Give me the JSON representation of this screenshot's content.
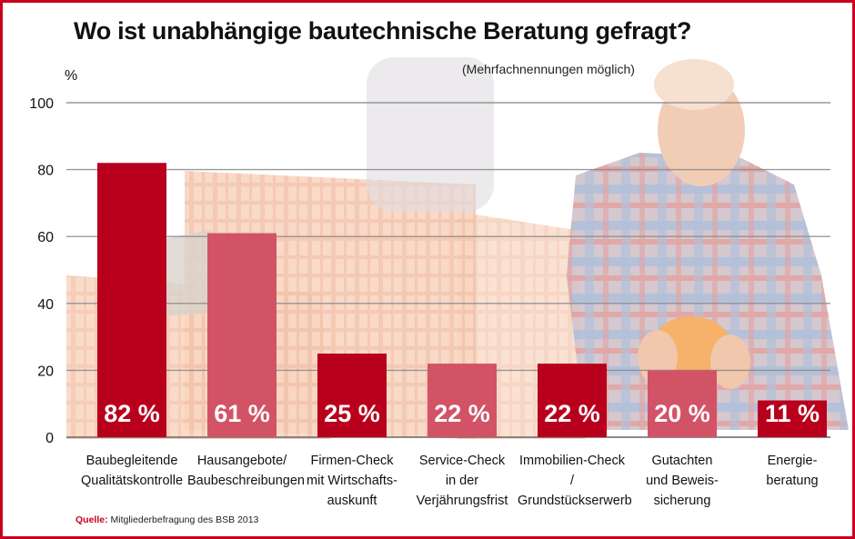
{
  "title": "Wo ist unabhängige bautechnische Beratung gefragt?",
  "subtitle": "(Mehrfachnennungen möglich)",
  "unit": "%",
  "source": {
    "label": "Quelle:",
    "text": "Mitgliederbefragung des BSB 2013"
  },
  "colors": {
    "dark": "#b8001c",
    "light": "#d25366",
    "frame": "#c8001e",
    "grid": "#888888"
  },
  "chart_data": {
    "type": "bar",
    "title": "Wo ist unabhängige bautechnische Beratung gefragt?",
    "ylabel": "%",
    "ylim": [
      0,
      100
    ],
    "yticks": [
      0,
      20,
      40,
      60,
      80,
      100
    ],
    "grid": true,
    "categories": [
      [
        "Baubegleitende",
        "Qualitätskontrolle"
      ],
      [
        "Hausangebote/",
        "Baubeschreibungen"
      ],
      [
        "Firmen-Check",
        "mit Wirtschafts-",
        "auskunft"
      ],
      [
        "Service-Check",
        "in der",
        "Verjährungsfrist"
      ],
      [
        "Immobilien-Check /",
        "Grundstückserwerb"
      ],
      [
        "Gutachten",
        "und Beweis-",
        "sicherung"
      ],
      [
        "Energie-",
        "beratung"
      ]
    ],
    "values": [
      82,
      61,
      25,
      22,
      22,
      20,
      11
    ],
    "value_labels": [
      "82 %",
      "61 %",
      "25 %",
      "22 %",
      "22 %",
      "20 %",
      "11 %"
    ],
    "bar_colors": [
      "#b8001c",
      "#d25366",
      "#b8001c",
      "#d25366",
      "#b8001c",
      "#d25366",
      "#b8001c"
    ]
  }
}
